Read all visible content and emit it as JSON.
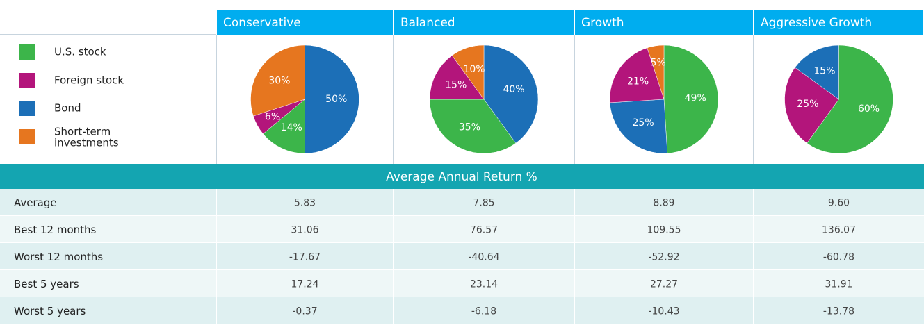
{
  "legend": [
    {
      "name": "U.S. stock",
      "color": "#3cb54a"
    },
    {
      "name": "Foreign stock",
      "color": "#b3157b"
    },
    {
      "name": "Bond",
      "color": "#1c6fb7"
    },
    {
      "name": "Short-term investments",
      "color": "#e6761f"
    }
  ],
  "chart_data": [
    {
      "type": "pie",
      "title": "Conservative",
      "categories": [
        "Bond",
        "U.S. stock",
        "Foreign stock",
        "Short-term investments"
      ],
      "values": [
        50,
        14,
        6,
        30
      ],
      "value_labels": [
        "50%",
        "14%",
        "6%",
        "30%"
      ]
    },
    {
      "type": "pie",
      "title": "Balanced",
      "categories": [
        "Bond",
        "U.S. stock",
        "Foreign stock",
        "Short-term investments"
      ],
      "values": [
        40,
        35,
        15,
        10
      ],
      "value_labels": [
        "40%",
        "35%",
        "15%",
        "10%"
      ]
    },
    {
      "type": "pie",
      "title": "Growth",
      "categories": [
        "U.S. stock",
        "Bond",
        "Foreign stock",
        "Short-term investments"
      ],
      "values": [
        49,
        25,
        21,
        5
      ],
      "value_labels": [
        "49%",
        "25%",
        "21%",
        "5%"
      ]
    },
    {
      "type": "pie",
      "title": "Aggressive Growth",
      "categories": [
        "U.S. stock",
        "Foreign stock",
        "Bond"
      ],
      "values": [
        60,
        25,
        15
      ],
      "value_labels": [
        "60%",
        "25%",
        "15%"
      ]
    }
  ],
  "table": {
    "title": "Average Annual Return %",
    "rows": [
      [
        "Average",
        "5.83",
        "7.85",
        "8.89",
        "9.60"
      ],
      [
        "Best 12 months",
        "31.06",
        "76.57",
        "109.55",
        "136.07"
      ],
      [
        "Worst 12 months",
        "-17.67",
        "-40.64",
        "-52.92",
        "-60.78"
      ],
      [
        "Best 5 years",
        "17.24",
        "23.14",
        "27.27",
        "31.91"
      ],
      [
        "Worst 5 years",
        "-0.37",
        "-6.18",
        "-10.43",
        "-13.78"
      ]
    ]
  }
}
